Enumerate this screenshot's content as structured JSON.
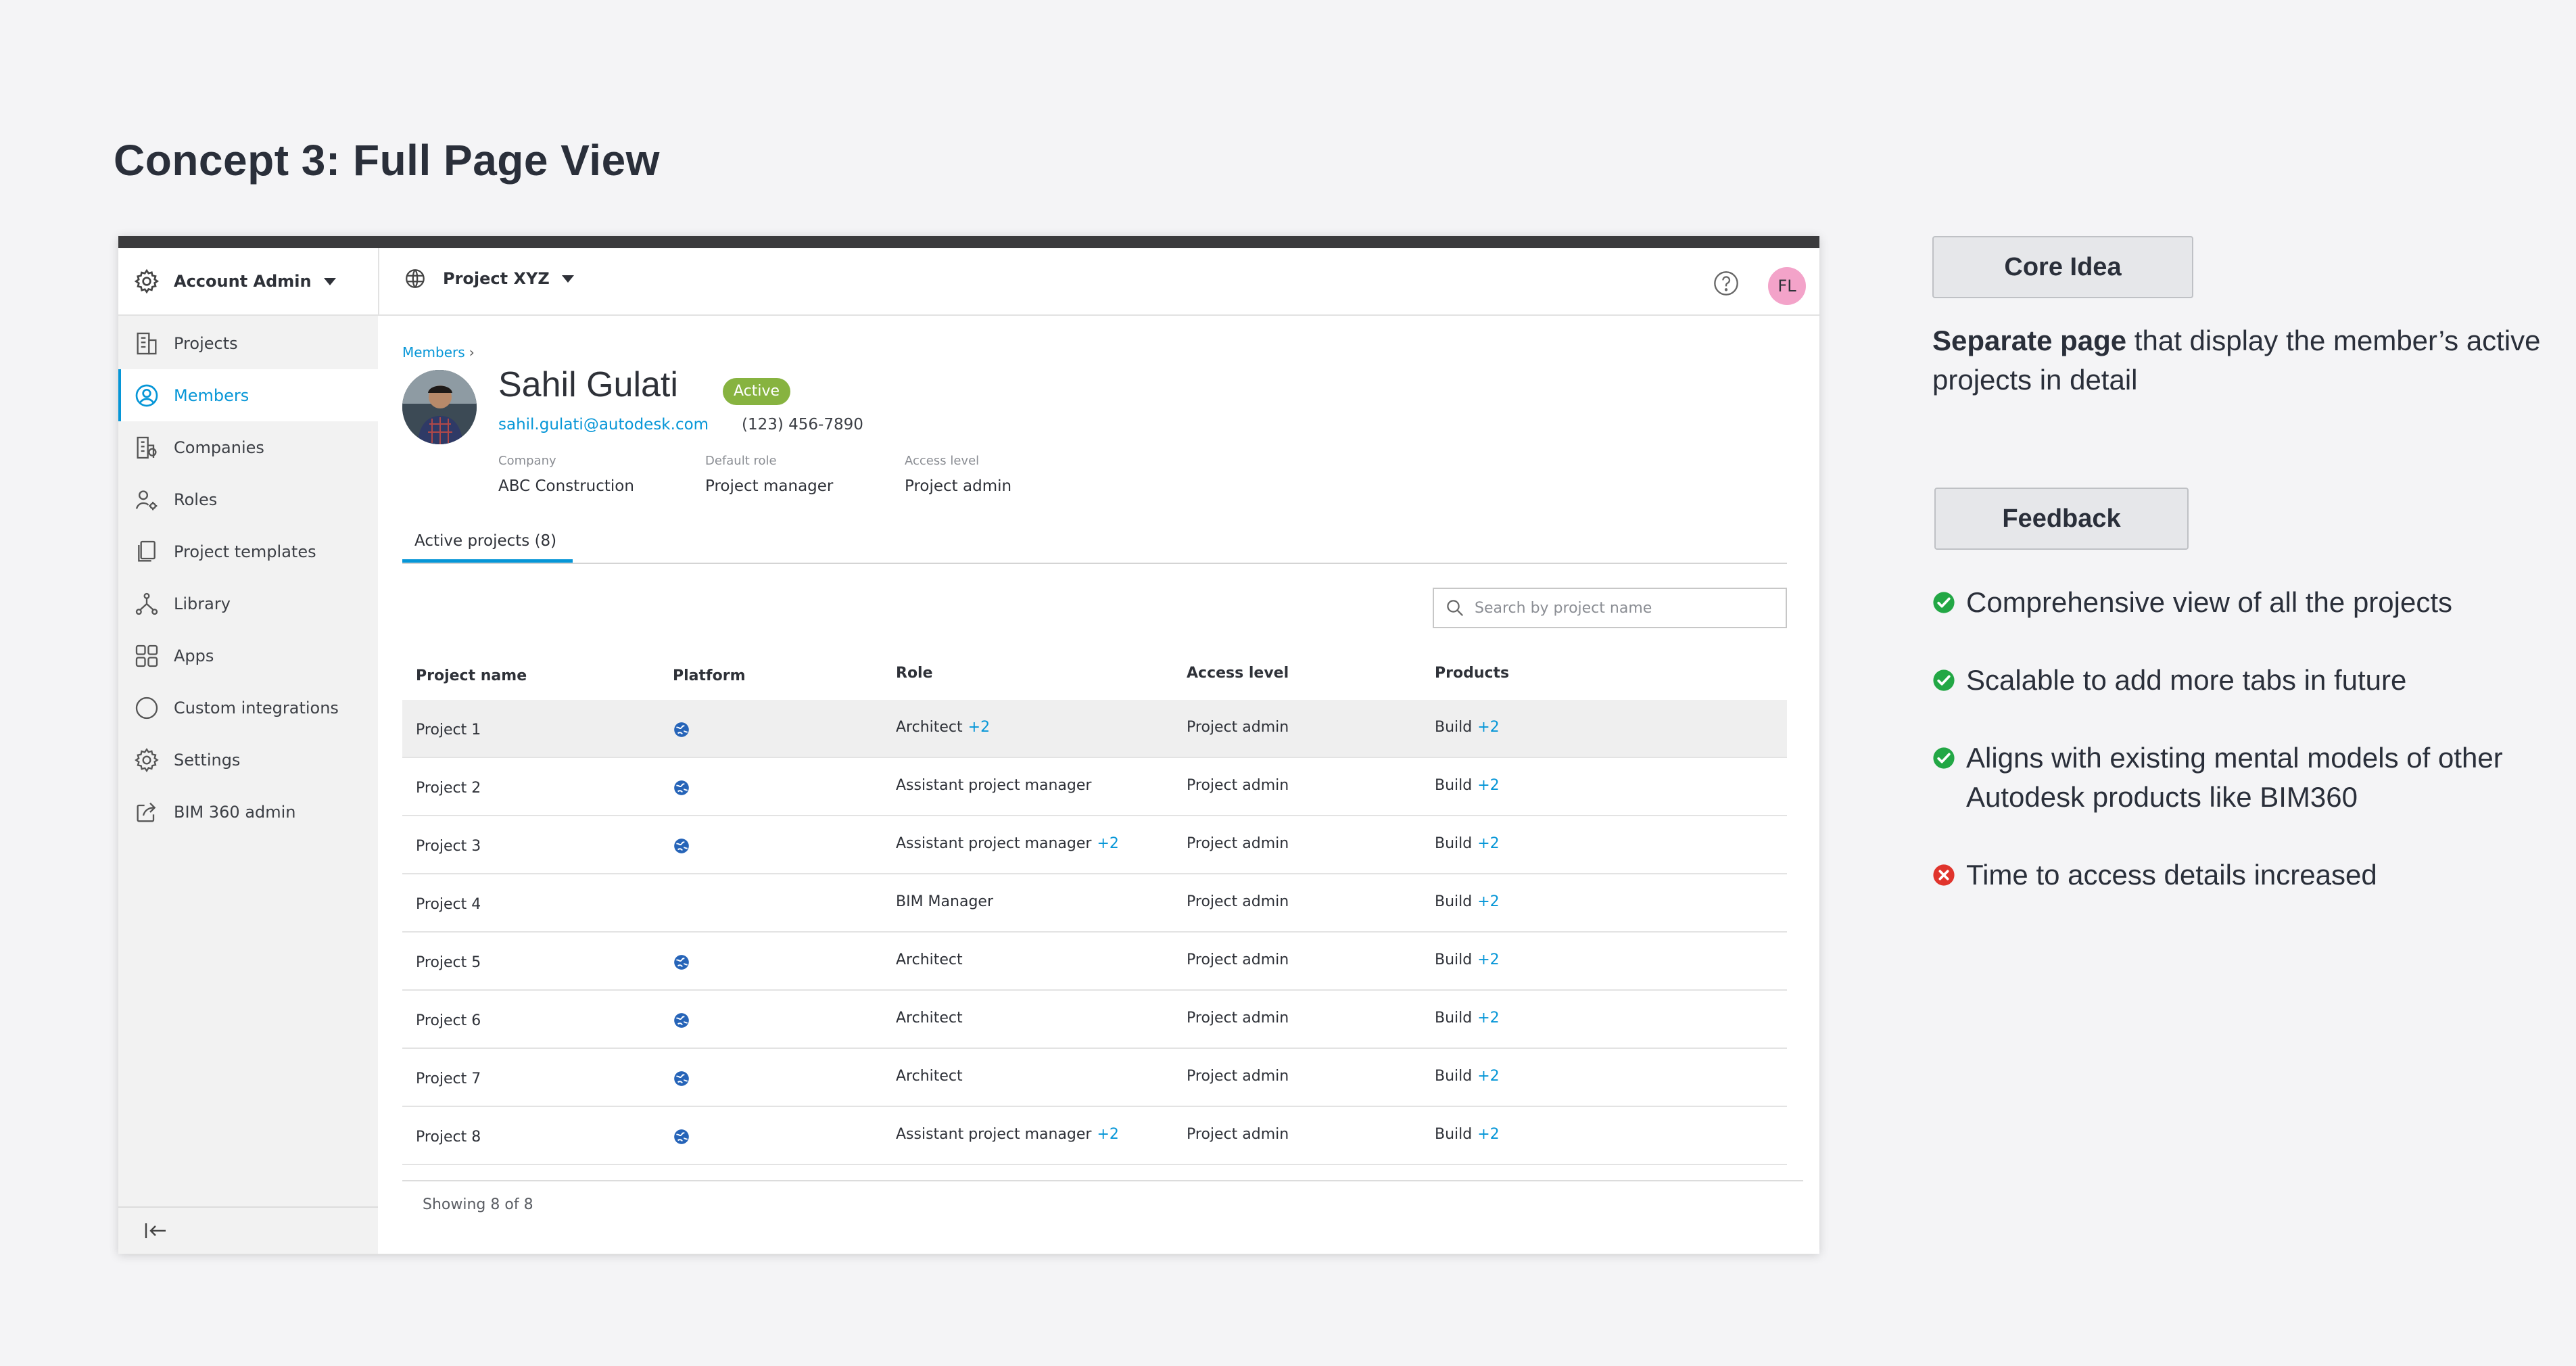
{
  "page_title": "Concept 3: Full Page View",
  "app": {
    "account_label": "Account Admin",
    "project_label": "Project XYZ",
    "user_initials": "FL",
    "nav": [
      {
        "label": "Projects",
        "icon": "projects-icon"
      },
      {
        "label": "Members",
        "icon": "member-icon",
        "active": true
      },
      {
        "label": "Companies",
        "icon": "companies-icon"
      },
      {
        "label": "Roles",
        "icon": "roles-icon"
      },
      {
        "label": "Project templates",
        "icon": "templates-icon"
      },
      {
        "label": "Library",
        "icon": "library-icon"
      },
      {
        "label": "Apps",
        "icon": "apps-icon"
      },
      {
        "label": "Custom integrations",
        "icon": "integrations-icon"
      },
      {
        "label": "Settings",
        "icon": "gear-icon"
      },
      {
        "label": "BIM 360 admin",
        "icon": "external-link-icon"
      }
    ],
    "breadcrumb": "Members",
    "member": {
      "name": "Sahil Gulati",
      "status": "Active",
      "email": "sahil.gulati@autodesk.com",
      "phone": "(123) 456-7890",
      "company_label": "Company",
      "company": "ABC Construction",
      "default_role_label": "Default role",
      "default_role": "Project manager",
      "access_level_label": "Access level",
      "access_level": "Project admin"
    },
    "tab_label": "Active projects (8)",
    "search_placeholder": "Search by project name",
    "columns": {
      "name": "Project name",
      "platform": "Platform",
      "role": "Role",
      "access": "Access level",
      "products": "Products"
    },
    "rows": [
      {
        "name": "Project 1",
        "platform": true,
        "role": "Architect",
        "role_extra": "+2",
        "access": "Project admin",
        "product": "Build",
        "product_extra": "+2"
      },
      {
        "name": "Project 2",
        "platform": true,
        "role": "Assistant project manager",
        "role_extra": "",
        "access": "Project admin",
        "product": "Build",
        "product_extra": "+2"
      },
      {
        "name": "Project 3",
        "platform": true,
        "role": "Assistant project manager",
        "role_extra": "+2",
        "access": "Project admin",
        "product": "Build",
        "product_extra": "+2"
      },
      {
        "name": "Project 4",
        "platform": false,
        "role": "BIM Manager",
        "role_extra": "",
        "access": "Project admin",
        "product": "Build",
        "product_extra": "+2"
      },
      {
        "name": "Project 5",
        "platform": true,
        "role": "Architect",
        "role_extra": "",
        "access": "Project admin",
        "product": "Build",
        "product_extra": "+2"
      },
      {
        "name": "Project 6",
        "platform": true,
        "role": "Architect",
        "role_extra": "",
        "access": "Project admin",
        "product": "Build",
        "product_extra": "+2"
      },
      {
        "name": "Project 7",
        "platform": true,
        "role": "Architect",
        "role_extra": "",
        "access": "Project admin",
        "product": "Build",
        "product_extra": "+2"
      },
      {
        "name": "Project 8",
        "platform": true,
        "role": "Assistant project manager",
        "role_extra": "+2",
        "access": "Project admin",
        "product": "Build",
        "product_extra": "+2"
      }
    ],
    "footer": "Showing 8 of 8"
  },
  "notes": {
    "core_button": "Core Idea",
    "core_bold": "Separate page",
    "core_rest": " that display the member’s active projects in detail",
    "feedback_button": "Feedback",
    "feedback": [
      {
        "type": "positive",
        "text": "Comprehensive view of all the projects"
      },
      {
        "type": "positive",
        "text": "Scalable to add more tabs in future"
      },
      {
        "type": "positive",
        "text": "Aligns with existing mental models of other Autodesk products like BIM360"
      },
      {
        "type": "negative",
        "text": "Time to access details increased"
      }
    ]
  },
  "colors": {
    "accent": "#0696d7",
    "active_badge": "#87b340",
    "positive": "#22a745",
    "negative": "#e0342c"
  }
}
